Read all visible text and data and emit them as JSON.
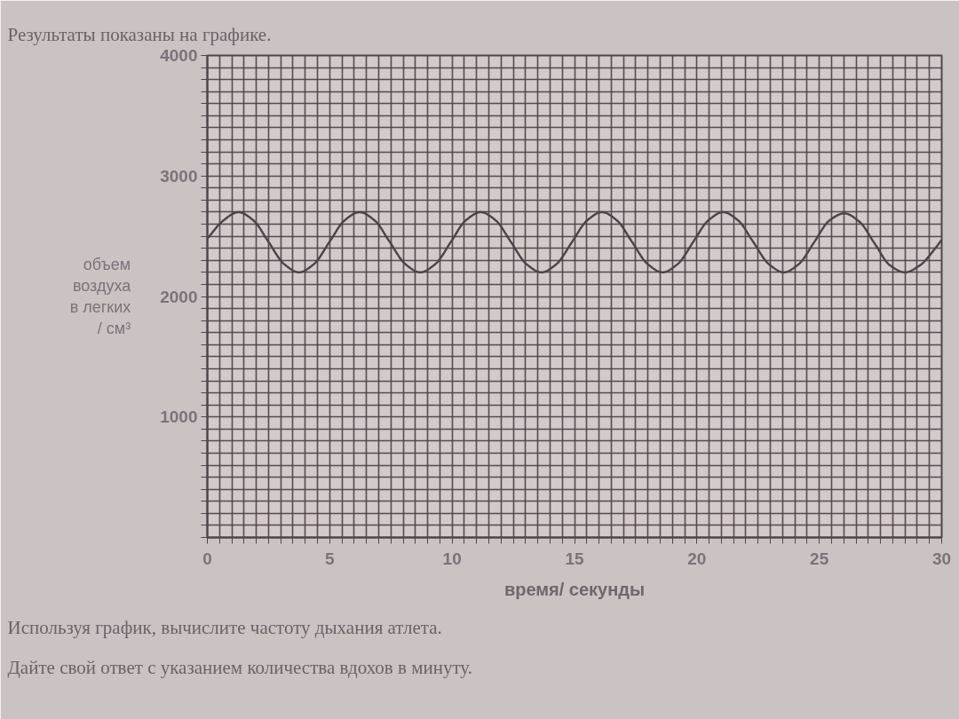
{
  "chart_data": {
    "type": "line",
    "title": "Результаты показаны на графике.",
    "xlabel": "время/ секунды",
    "ylabel": "объем\nвоздуха\nв легких\n/ см³",
    "annotations": [
      "Используя график, вычислите частоту дыхания атлета.",
      "Дайте свой ответ с указанием количества вдохов в минуту."
    ],
    "x": [
      0,
      0.65,
      1.27,
      1.89,
      2.51,
      3.13,
      3.75,
      4.36,
      4.98,
      5.6,
      6.22,
      6.84,
      7.46,
      8.08,
      8.7,
      9.32,
      9.94,
      10.55,
      11.17,
      11.79,
      12.41,
      13.03,
      13.65,
      14.27,
      14.89,
      15.51,
      16.12,
      16.74,
      17.36,
      17.98,
      18.6,
      19.22,
      19.84,
      20.46,
      21.07,
      21.69,
      22.31,
      22.93,
      23.55,
      24.17,
      24.79,
      25.41,
      26.02,
      26.64,
      27.26,
      27.88,
      28.5,
      29.12,
      29.74,
      30
    ],
    "series": [
      {
        "color": "#4d4247",
        "values": [
          2480,
          2630,
          2700,
          2630,
          2450,
          2270,
          2200,
          2270,
          2450,
          2630,
          2700,
          2630,
          2450,
          2270,
          2200,
          2270,
          2450,
          2630,
          2700,
          2630,
          2450,
          2270,
          2200,
          2270,
          2450,
          2630,
          2700,
          2630,
          2450,
          2270,
          2200,
          2270,
          2450,
          2630,
          2700,
          2630,
          2450,
          2270,
          2200,
          2270,
          2450,
          2630,
          2690,
          2620,
          2440,
          2260,
          2200,
          2260,
          2400,
          2470
        ]
      }
    ],
    "xlim": [
      0,
      30
    ],
    "ylim": [
      0,
      4000
    ],
    "xticks": [
      0,
      {
        "value": 0.5,
        "label": null
      },
      {
        "value": 1,
        "label": null
      },
      {
        "value": 1.5,
        "label": null
      },
      {
        "value": 2,
        "label": null
      },
      {
        "value": 2.5,
        "label": null
      },
      {
        "value": 3,
        "label": null
      },
      {
        "value": 3.5,
        "label": null
      },
      {
        "value": 4,
        "label": null
      },
      {
        "value": 4.5,
        "label": null
      },
      5,
      {
        "value": 5.5,
        "label": null
      },
      {
        "value": 6,
        "label": null
      },
      {
        "value": 6.5,
        "label": null
      },
      {
        "value": 7,
        "label": null
      },
      {
        "value": 7.5,
        "label": null
      },
      {
        "value": 8,
        "label": null
      },
      {
        "value": 8.5,
        "label": null
      },
      {
        "value": 9,
        "label": null
      },
      {
        "value": 9.5,
        "label": null
      },
      10,
      {
        "value": 10.5,
        "label": null
      },
      {
        "value": 11,
        "label": null
      },
      {
        "value": 11.5,
        "label": null
      },
      {
        "value": 12,
        "label": null
      },
      {
        "value": 12.5,
        "label": null
      },
      {
        "value": 13,
        "label": null
      },
      {
        "value": 13.5,
        "label": null
      },
      {
        "value": 14,
        "label": null
      },
      {
        "value": 14.5,
        "label": null
      },
      15,
      {
        "value": 15.5,
        "label": null
      },
      {
        "value": 16,
        "label": null
      },
      {
        "value": 16.5,
        "label": null
      },
      {
        "value": 17,
        "label": null
      },
      {
        "value": 17.5,
        "label": null
      },
      {
        "value": 18,
        "label": null
      },
      {
        "value": 18.5,
        "label": null
      },
      {
        "value": 19,
        "label": null
      },
      {
        "value": 19.5,
        "label": null
      },
      20,
      {
        "value": 20.5,
        "label": null
      },
      {
        "value": 21,
        "label": null
      },
      {
        "value": 21.5,
        "label": null
      },
      {
        "value": 22,
        "label": null
      },
      {
        "value": 22.5,
        "label": null
      },
      {
        "value": 23,
        "label": null
      },
      {
        "value": 23.5,
        "label": null
      },
      {
        "value": 24,
        "label": null
      },
      {
        "value": 24.5,
        "label": null
      },
      25,
      {
        "value": 25.5,
        "label": null
      },
      {
        "value": 26,
        "label": null
      },
      {
        "value": 26.5,
        "label": null
      },
      {
        "value": 27,
        "label": null
      },
      {
        "value": 27.5,
        "label": null
      },
      {
        "value": 28,
        "label": null
      },
      {
        "value": 28.5,
        "label": null
      },
      {
        "value": 29,
        "label": null
      },
      {
        "value": 29.5,
        "label": null
      },
      30
    ],
    "yticks": [
      {
        "value": 0,
        "label": null
      },
      {
        "value": 100,
        "label": null
      },
      {
        "value": 200,
        "label": null
      },
      {
        "value": 300,
        "label": null
      },
      {
        "value": 400,
        "label": null
      },
      {
        "value": 500,
        "label": null
      },
      {
        "value": 600,
        "label": null
      },
      {
        "value": 700,
        "label": null
      },
      {
        "value": 800,
        "label": null
      },
      {
        "value": 900,
        "label": null
      },
      1000,
      {
        "value": 1100,
        "label": null
      },
      {
        "value": 1200,
        "label": null
      },
      {
        "value": 1300,
        "label": null
      },
      {
        "value": 1400,
        "label": null
      },
      {
        "value": 1500,
        "label": null
      },
      {
        "value": 1600,
        "label": null
      },
      {
        "value": 1700,
        "label": null
      },
      {
        "value": 1800,
        "label": null
      },
      {
        "value": 1900,
        "label": null
      },
      2000,
      {
        "value": 2100,
        "label": null
      },
      {
        "value": 2200,
        "label": null
      },
      {
        "value": 2300,
        "label": null
      },
      {
        "value": 2400,
        "label": null
      },
      {
        "value": 2500,
        "label": null
      },
      {
        "value": 2600,
        "label": null
      },
      {
        "value": 2700,
        "label": null
      },
      {
        "value": 2800,
        "label": null
      },
      {
        "value": 2900,
        "label": null
      },
      3000,
      {
        "value": 3100,
        "label": null
      },
      {
        "value": 3200,
        "label": null
      },
      {
        "value": 3300,
        "label": null
      },
      {
        "value": 3400,
        "label": null
      },
      {
        "value": 3500,
        "label": null
      },
      {
        "value": 3600,
        "label": null
      },
      {
        "value": 3700,
        "label": null
      },
      {
        "value": 3800,
        "label": null
      },
      {
        "value": 3900,
        "label": null
      },
      4000
    ],
    "grid": true
  }
}
